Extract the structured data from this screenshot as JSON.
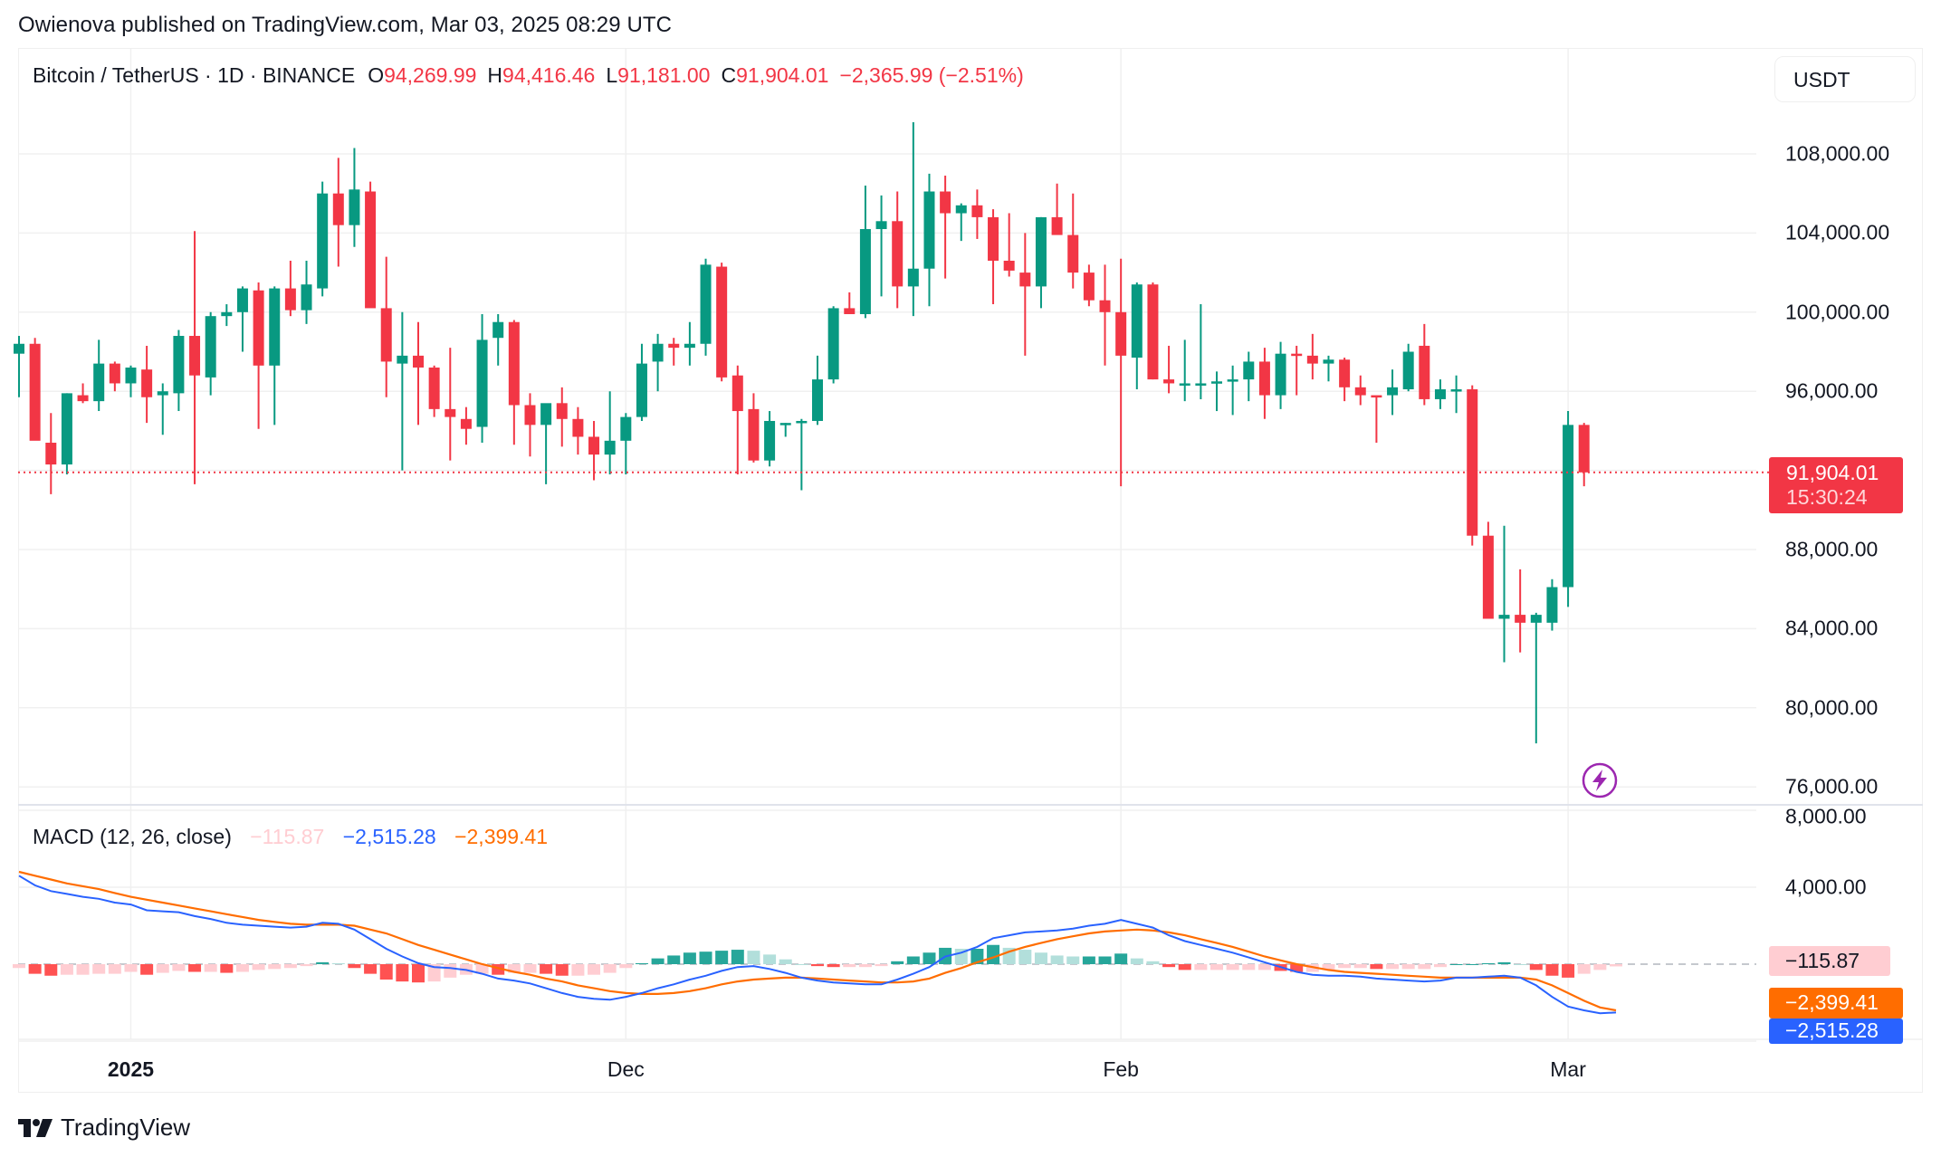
{
  "publisher": "Owienova published on TradingView.com, Mar 03, 2025 08:29 UTC",
  "legend": {
    "symbol": "Bitcoin / TetherUS · 1D · BINANCE",
    "open_key": "O",
    "open": "94,269.99",
    "high_key": "H",
    "high": "94,416.46",
    "low_key": "L",
    "low": "91,181.00",
    "close_key": "C",
    "close": "91,904.01",
    "change": "−2,365.99 (−2.51%)"
  },
  "currency": "USDT",
  "price_axis": [
    "108,000.00",
    "104,000.00",
    "100,000.00",
    "96,000.00",
    "88,000.00",
    "84,000.00",
    "80,000.00",
    "76,000.00"
  ],
  "last_price": {
    "price": "91,904.01",
    "countdown": "15:30:24"
  },
  "macd_legend": {
    "name": "MACD (12, 26, close)",
    "histogram": "−115.87",
    "macd": "−2,515.28",
    "signal": "−2,399.41"
  },
  "macd_axis": [
    "8,000.00",
    "4,000.00"
  ],
  "macd_tags": {
    "histogram": "−115.87",
    "signal": "−2,399.41",
    "macd": "−2,515.28"
  },
  "time_axis": [
    {
      "label": "Dec",
      "bold": false
    },
    {
      "label": "2025",
      "bold": true
    },
    {
      "label": "Feb",
      "bold": false
    },
    {
      "label": "Mar",
      "bold": false
    }
  ],
  "brand": "TradingView",
  "colors": {
    "up": "#089981",
    "down": "#f23645",
    "macd": "#2962ff",
    "signal": "#ff6d00",
    "hist_up_strong": "#26a69a",
    "hist_up_weak": "#b2dfdb",
    "hist_down_strong": "#ff5252",
    "hist_down_weak": "#ffcdd2",
    "grid": "#f0f0f0",
    "lightning": "#9c27b0"
  },
  "chart_data": {
    "type": "candlestick",
    "title": "Bitcoin / TetherUS · 1D · BINANCE",
    "xlabel": "",
    "ylabel": "USDT",
    "ylim": [
      74800,
      110300
    ],
    "x_start": "2024-11-24",
    "x_ticks": {
      "Dec": 7,
      "2025": 38,
      "Feb": 69,
      "Mar": 97
    },
    "ohlc": [
      [
        97900,
        98800,
        95700,
        98400
      ],
      [
        98400,
        98700,
        94000,
        93500
      ],
      [
        93400,
        94900,
        90800,
        92300
      ],
      [
        92300,
        95900,
        91800,
        95900
      ],
      [
        95800,
        96400,
        95400,
        95500
      ],
      [
        95500,
        98600,
        95000,
        97400
      ],
      [
        97400,
        97500,
        96000,
        96400
      ],
      [
        96400,
        97300,
        95700,
        97200
      ],
      [
        97100,
        98300,
        94400,
        95700
      ],
      [
        95800,
        96400,
        93800,
        96000
      ],
      [
        95900,
        99100,
        95000,
        98800
      ],
      [
        98800,
        104100,
        91300,
        96800
      ],
      [
        96700,
        100000,
        95800,
        99800
      ],
      [
        99800,
        100400,
        99300,
        100000
      ],
      [
        100000,
        101300,
        98000,
        101200
      ],
      [
        101100,
        101500,
        94100,
        97300
      ],
      [
        97300,
        101300,
        94300,
        101200
      ],
      [
        101200,
        102600,
        99800,
        100100
      ],
      [
        100100,
        102600,
        99400,
        101400
      ],
      [
        101200,
        106600,
        100800,
        106000
      ],
      [
        106000,
        107800,
        102300,
        104400
      ],
      [
        104400,
        108300,
        103300,
        106200
      ],
      [
        106100,
        106600,
        100400,
        100200
      ],
      [
        100200,
        102800,
        95700,
        97500
      ],
      [
        97400,
        100000,
        92000,
        97800
      ],
      [
        97800,
        99500,
        94300,
        97200
      ],
      [
        97200,
        97300,
        94700,
        95100
      ],
      [
        95100,
        98200,
        92500,
        94700
      ],
      [
        94600,
        95200,
        93300,
        94100
      ],
      [
        94200,
        99900,
        93400,
        98600
      ],
      [
        98700,
        99900,
        97300,
        99500
      ],
      [
        99500,
        99600,
        93300,
        95300
      ],
      [
        95300,
        95900,
        92700,
        94300
      ],
      [
        94300,
        95300,
        91300,
        95400
      ],
      [
        95400,
        96200,
        93200,
        94600
      ],
      [
        94600,
        95200,
        92800,
        93700
      ],
      [
        93700,
        94500,
        91500,
        92800
      ],
      [
        92800,
        96000,
        91800,
        93500
      ],
      [
        93500,
        94900,
        91800,
        94700
      ],
      [
        94700,
        98400,
        94500,
        97400
      ],
      [
        97500,
        98900,
        96000,
        98400
      ],
      [
        98400,
        98700,
        97300,
        98200
      ],
      [
        98200,
        99500,
        97300,
        98400
      ],
      [
        98400,
        102700,
        97800,
        102400
      ],
      [
        102300,
        102500,
        96500,
        96700
      ],
      [
        96800,
        97300,
        91800,
        95000
      ],
      [
        95100,
        95900,
        92400,
        92500
      ],
      [
        92500,
        95000,
        92200,
        94500
      ],
      [
        94400,
        94400,
        93700,
        94400
      ],
      [
        94500,
        94600,
        91000,
        94500
      ],
      [
        94500,
        97800,
        94300,
        96600
      ],
      [
        96600,
        100300,
        96400,
        100200
      ],
      [
        100200,
        101000,
        99900,
        99900
      ],
      [
        99900,
        106400,
        99700,
        104200
      ],
      [
        104200,
        105900,
        100800,
        104600
      ],
      [
        104600,
        106100,
        100200,
        101300
      ],
      [
        101300,
        109600,
        99800,
        102200
      ],
      [
        102200,
        107000,
        100300,
        106100
      ],
      [
        106100,
        106900,
        101700,
        105000
      ],
      [
        105000,
        105500,
        103600,
        105400
      ],
      [
        105400,
        106200,
        103700,
        104800
      ],
      [
        104800,
        105200,
        100400,
        102600
      ],
      [
        102600,
        105000,
        101800,
        102100
      ],
      [
        102000,
        104000,
        97800,
        101300
      ],
      [
        101300,
        104800,
        100200,
        104800
      ],
      [
        104800,
        106500,
        104000,
        103900
      ],
      [
        103900,
        106000,
        101200,
        102000
      ],
      [
        102000,
        102400,
        100300,
        100600
      ],
      [
        100600,
        102400,
        97300,
        100000
      ],
      [
        100000,
        102700,
        91200,
        97800
      ],
      [
        97700,
        101500,
        96100,
        101400
      ],
      [
        101400,
        101500,
        96600,
        96600
      ],
      [
        96600,
        98300,
        95900,
        96400
      ],
      [
        96400,
        98600,
        95500,
        96400
      ],
      [
        96400,
        100400,
        95600,
        96400
      ],
      [
        96400,
        97000,
        95000,
        96500
      ],
      [
        96500,
        97300,
        94800,
        96600
      ],
      [
        96600,
        98000,
        95500,
        97500
      ],
      [
        97500,
        98200,
        94600,
        95800
      ],
      [
        95800,
        98500,
        95100,
        97900
      ],
      [
        97900,
        98300,
        95800,
        97800
      ],
      [
        97800,
        98900,
        96600,
        97400
      ],
      [
        97400,
        97800,
        96500,
        97600
      ],
      [
        97600,
        97700,
        95500,
        96200
      ],
      [
        96200,
        96800,
        95300,
        95800
      ],
      [
        95800,
        95700,
        93400,
        95700
      ],
      [
        95800,
        97100,
        94800,
        96200
      ],
      [
        96100,
        98400,
        96000,
        98000
      ],
      [
        98300,
        99400,
        95300,
        95600
      ],
      [
        95600,
        96600,
        95100,
        96100
      ],
      [
        96100,
        96800,
        94900,
        96100
      ],
      [
        96100,
        96300,
        88200,
        88700
      ],
      [
        88700,
        89400,
        86000,
        84500
      ],
      [
        84500,
        89200,
        82300,
        84700
      ],
      [
        84700,
        87000,
        82800,
        84300
      ],
      [
        84300,
        84800,
        78200,
        84700
      ],
      [
        84300,
        86500,
        83900,
        86100
      ],
      [
        86100,
        95000,
        85100,
        94300
      ],
      [
        94300,
        94400,
        91200,
        91900
      ]
    ],
    "macd": {
      "params": "MACD (12, 26, close)",
      "last": {
        "histogram": -115.87,
        "macd": -2515.28,
        "signal": -2399.41
      },
      "macd_line": [
        4600,
        4100,
        3800,
        3650,
        3500,
        3400,
        3200,
        3100,
        2800,
        2750,
        2700,
        2500,
        2350,
        2150,
        2050,
        2000,
        1950,
        1900,
        1950,
        2150,
        2100,
        1800,
        1300,
        800,
        400,
        50,
        -150,
        -200,
        -300,
        -500,
        -750,
        -850,
        -1000,
        -1250,
        -1500,
        -1700,
        -1800,
        -1850,
        -1700,
        -1500,
        -1250,
        -1050,
        -800,
        -600,
        -350,
        -150,
        -100,
        -250,
        -450,
        -700,
        -850,
        -950,
        -1000,
        -1050,
        -1050,
        -800,
        -500,
        -150,
        400,
        600,
        900,
        1350,
        1500,
        1650,
        1700,
        1750,
        1850,
        2000,
        2100,
        2300,
        2100,
        1900,
        1500,
        1200,
        1000,
        800,
        600,
        350,
        100,
        -150,
        -400,
        -550,
        -600,
        -600,
        -650,
        -750,
        -800,
        -850,
        -900,
        -850,
        -700,
        -700,
        -650,
        -600,
        -700,
        -1100,
        -1700,
        -2200,
        -2400,
        -2550,
        -2515
      ],
      "signal_line": [
        4800,
        4600,
        4400,
        4200,
        4050,
        3900,
        3700,
        3500,
        3350,
        3200,
        3050,
        2900,
        2750,
        2600,
        2450,
        2300,
        2200,
        2100,
        2050,
        2050,
        2050,
        2000,
        1800,
        1600,
        1300,
        1000,
        750,
        500,
        250,
        0,
        -200,
        -400,
        -550,
        -750,
        -900,
        -1100,
        -1250,
        -1400,
        -1500,
        -1550,
        -1550,
        -1500,
        -1400,
        -1250,
        -1050,
        -900,
        -800,
        -750,
        -700,
        -700,
        -750,
        -800,
        -850,
        -900,
        -950,
        -950,
        -900,
        -750,
        -450,
        -200,
        100,
        350,
        650,
        900,
        1100,
        1300,
        1450,
        1600,
        1700,
        1750,
        1800,
        1750,
        1650,
        1500,
        1300,
        1100,
        900,
        650,
        400,
        200,
        0,
        -150,
        -300,
        -400,
        -450,
        -500,
        -550,
        -600,
        -650,
        -700,
        -700,
        -700,
        -700,
        -700,
        -700,
        -800,
        -1100,
        -1500,
        -1900,
        -2250,
        -2399
      ]
    }
  }
}
